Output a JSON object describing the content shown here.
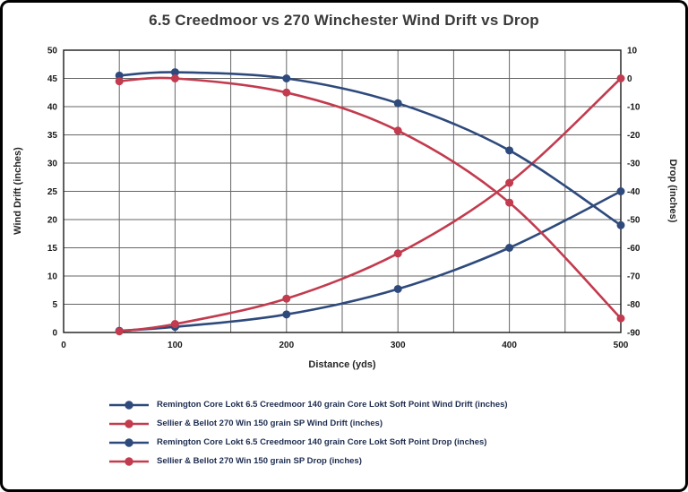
{
  "chart_data": {
    "type": "line",
    "title": "6.5 Creedmoor vs 270 Winchester Wind Drift vs Drop",
    "xlabel": "Distance (yds)",
    "ylabel_left": "Wind Drift (inches)",
    "ylabel_right": "Drop (inches)",
    "grid": true,
    "legend_position": "bottom-left",
    "xlim": [
      0,
      500
    ],
    "x_ticks": [
      0,
      100,
      200,
      300,
      400,
      500
    ],
    "x_gridlines": [
      0,
      50,
      100,
      150,
      200,
      250,
      300,
      350,
      400,
      450,
      500
    ],
    "ylim_left": [
      0,
      50
    ],
    "y_ticks_left": [
      0,
      5,
      10,
      15,
      20,
      25,
      30,
      35,
      40,
      45,
      50
    ],
    "ylim_right": [
      -90,
      10
    ],
    "y_ticks_right": [
      -90,
      -80,
      -70,
      -60,
      -50,
      -40,
      -30,
      -20,
      -10,
      0,
      10
    ],
    "x": [
      50,
      100,
      200,
      300,
      400,
      500
    ],
    "series": [
      {
        "name": "Remington Core Lokt 6.5 Creedmoor 140 grain Core Lokt Soft Point Wind Drift (inches)",
        "axis": "left",
        "color": "#2E4A7C",
        "values": [
          0.3,
          1.0,
          3.2,
          7.7,
          15.0,
          25.0
        ]
      },
      {
        "name": "Sellier & Bellot 270 Win 150 grain SP Wind Drift (inches)",
        "axis": "left",
        "color": "#C23B4E",
        "values": [
          0.2,
          1.5,
          6.0,
          14.0,
          26.5,
          45.0
        ]
      },
      {
        "name": "Remington Core Lokt 6.5 Creedmoor 140 grain Core Lokt Soft Point Drop (inches)",
        "axis": "right",
        "color": "#2E4A7C",
        "values": [
          1.0,
          2.2,
          0.0,
          -8.8,
          -25.5,
          -52.0
        ]
      },
      {
        "name": "Sellier & Bellot 270 Win 150 grain SP Drop (inches)",
        "axis": "right",
        "color": "#C23B4E",
        "values": [
          -1.0,
          0.0,
          -5.0,
          -18.5,
          -44.0,
          -85.0
        ]
      }
    ]
  }
}
